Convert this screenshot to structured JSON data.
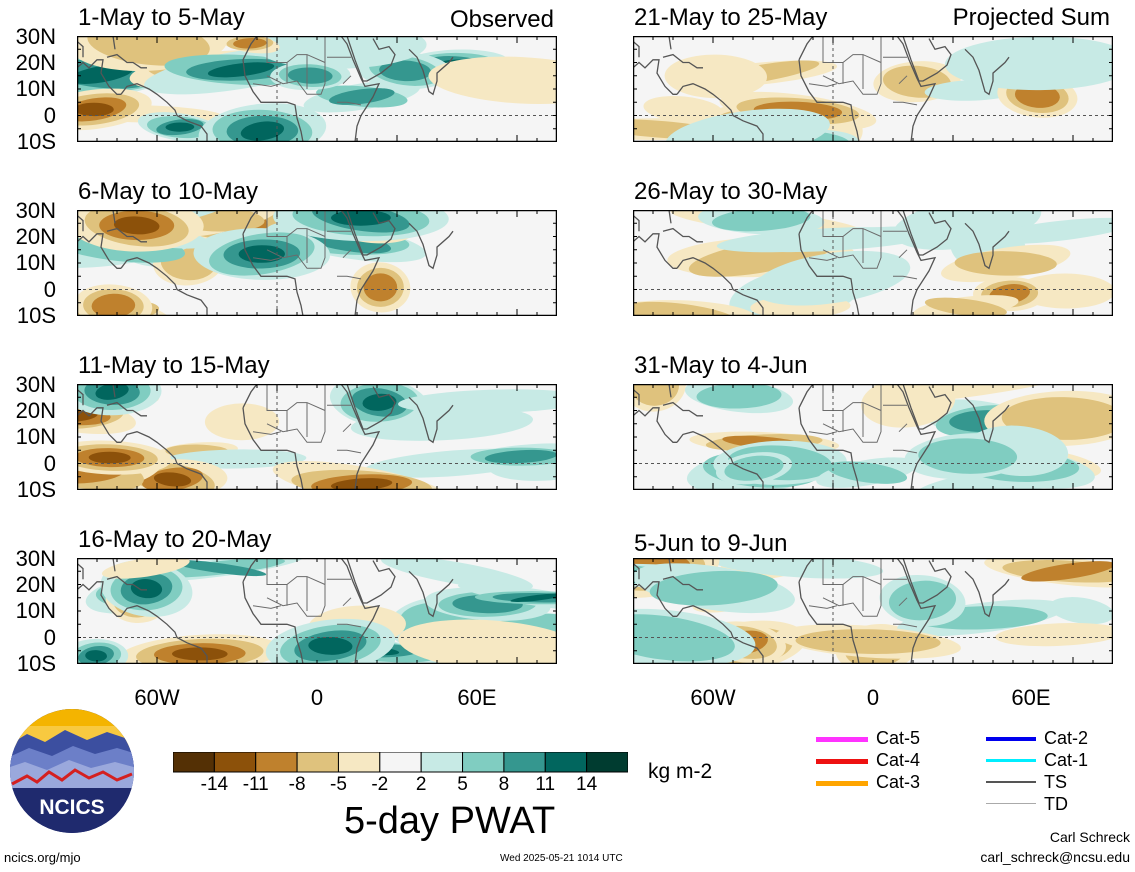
{
  "header": {
    "observed_label": "Observed",
    "projected_label": "Projected Sum"
  },
  "panels_observed": [
    {
      "title": "1-May to 5-May"
    },
    {
      "title": "6-May to 10-May"
    },
    {
      "title": "11-May to 15-May"
    },
    {
      "title": "16-May to 20-May"
    }
  ],
  "panels_projected": [
    {
      "title": "21-May to 25-May"
    },
    {
      "title": "26-May to 30-May"
    },
    {
      "title": "31-May to 4-Jun"
    },
    {
      "title": "5-Jun to 9-Jun"
    }
  ],
  "lat_labels": [
    "30N",
    "20N",
    "10N",
    "0",
    "10S"
  ],
  "lon_labels": [
    "60W",
    "0",
    "60E"
  ],
  "colorbar": {
    "ticks": [
      "-14",
      "-11",
      "-8",
      "-5",
      "-2",
      "2",
      "5",
      "8",
      "11",
      "14"
    ],
    "colors": [
      "#543005",
      "#8c510a",
      "#bf812d",
      "#dfc27d",
      "#f6e8c3",
      "#f5f5f5",
      "#c7eae5",
      "#80cdc1",
      "#35978f",
      "#01665e",
      "#003c30"
    ],
    "units": "kg m-2",
    "title": "5-day PWAT"
  },
  "legend": [
    {
      "label": "Cat-5",
      "color": "#ff33ff"
    },
    {
      "label": "Cat-4",
      "color": "#ee1111"
    },
    {
      "label": "Cat-3",
      "color": "#ffa500"
    },
    {
      "label": "Cat-2",
      "color": "#0000ee"
    },
    {
      "label": "Cat-1",
      "color": "#00eeff"
    },
    {
      "label": "TS",
      "color": "#555555"
    },
    {
      "label": "TD",
      "color": "#aaaaaa"
    }
  ],
  "logo": {
    "text": "NCICS"
  },
  "footer": {
    "url": "ncics.org/mjo",
    "timestamp": "Wed 2025-05-21 1014 UTC",
    "author": "Carl Schreck",
    "email": "carl_schreck@ncsu.edu"
  }
}
